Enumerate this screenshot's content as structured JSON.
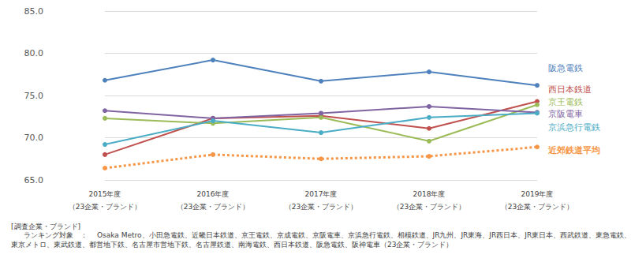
{
  "chart_data": {
    "type": "line",
    "categories": [
      "2015年度\n（23企業・ブランド）",
      "2016年度\n（23企業・ブランド）",
      "2017年度\n（23企業・ブランド）",
      "2018年度\n（23企業・ブランド）",
      "2019年度\n（23企業・ブランド）"
    ],
    "series": [
      {
        "name": "阪急電鉄",
        "color": "#4f81bd",
        "marker": "circle",
        "line_style": "solid",
        "values": [
          76.8,
          79.2,
          76.7,
          77.8,
          76.2
        ]
      },
      {
        "name": "西日本鉄道",
        "color": "#c0504d",
        "marker": "circle",
        "line_style": "solid",
        "values": [
          68.0,
          72.3,
          72.6,
          71.1,
          74.3
        ]
      },
      {
        "name": "京王電鉄",
        "color": "#9bbb59",
        "marker": "circle",
        "line_style": "solid",
        "values": [
          72.3,
          71.7,
          72.4,
          69.6,
          73.9
        ]
      },
      {
        "name": "京阪電車",
        "color": "#8064a2",
        "marker": "circle",
        "line_style": "solid",
        "values": [
          73.2,
          72.3,
          72.9,
          73.7,
          73.0
        ]
      },
      {
        "name": "京浜急行電鉄",
        "color": "#4bacc6",
        "marker": "circle",
        "line_style": "solid",
        "values": [
          69.2,
          72.0,
          70.6,
          72.4,
          72.9
        ]
      },
      {
        "name": "近郊鉄道平均",
        "color": "#f79646",
        "marker": "circle",
        "line_style": "dotted",
        "values": [
          66.4,
          68.0,
          67.5,
          67.8,
          68.9
        ]
      }
    ],
    "ylim": [
      65,
      85
    ],
    "yticks": [
      {
        "value": 65,
        "label": "65.0"
      },
      {
        "value": 70,
        "label": "70.0"
      },
      {
        "value": 75,
        "label": "75.0"
      },
      {
        "value": 80,
        "label": "80.0"
      },
      {
        "value": 85,
        "label": "85.0"
      }
    ],
    "grid": true,
    "annotations": [
      "[調査企業・ブランド]",
      "ランキング対象　：",
      "Osaka Metro、小田急電鉄、近畿日本鉄道、京王電鉄、京成電鉄、京阪電車、京浜急行電鉄、相模鉄道、JR九州、JR東海、JR西日本、JR東日本、西武鉄道、東急電鉄、",
      "東京メトロ、東武鉄道、都営地下鉄、名古屋市営地下鉄、名古屋鉄道、南海電鉄、西日本鉄道、阪急電鉄、阪神電車（23企業・ブランド）"
    ]
  }
}
